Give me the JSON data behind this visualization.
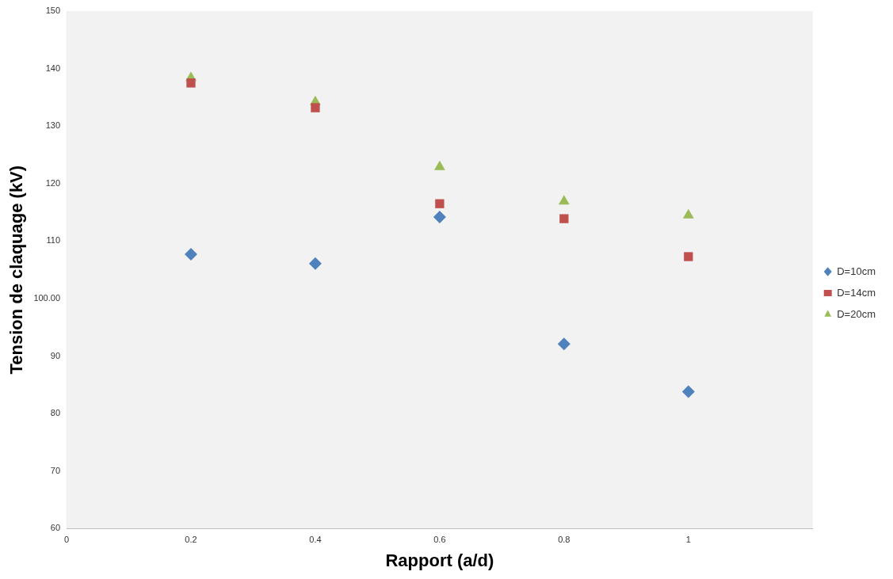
{
  "chart_data": {
    "type": "scatter",
    "xlabel": "Rapport (a/d)",
    "ylabel": "Tension de claquage (kV)",
    "xlim": [
      0,
      1.2
    ],
    "xticks": [
      0,
      0.2,
      0.4,
      0.6,
      0.8,
      1,
      {
        "value": 1.2,
        "label": null
      }
    ],
    "ylim": [
      60,
      150
    ],
    "yticks": [
      60,
      70,
      80,
      90,
      {
        "value": 100,
        "label": "100.00"
      },
      110,
      120,
      130,
      140,
      150
    ],
    "grid": false,
    "legend": "right",
    "series": [
      {
        "name": "D=10cm",
        "color": "#4f81bd",
        "marker": "diamond",
        "x": [
          0.2,
          0.4,
          0.6,
          0.8,
          1
        ],
        "values": [
          107.7,
          106.1,
          114.2,
          92.1,
          83.8
        ]
      },
      {
        "name": "D=14cm",
        "color": "#c0504d",
        "marker": "square",
        "x": [
          0.2,
          0.4,
          0.6,
          0.8,
          1
        ],
        "values": [
          137.5,
          133.2,
          116.5,
          113.9,
          107.3
        ]
      },
      {
        "name": "D=20cm",
        "color": "#9bbb59",
        "marker": "triangle",
        "x": [
          0.2,
          0.4,
          0.6,
          0.8,
          1
        ],
        "values": [
          138.4,
          134.2,
          122.9,
          116.9,
          114.5
        ]
      }
    ]
  }
}
